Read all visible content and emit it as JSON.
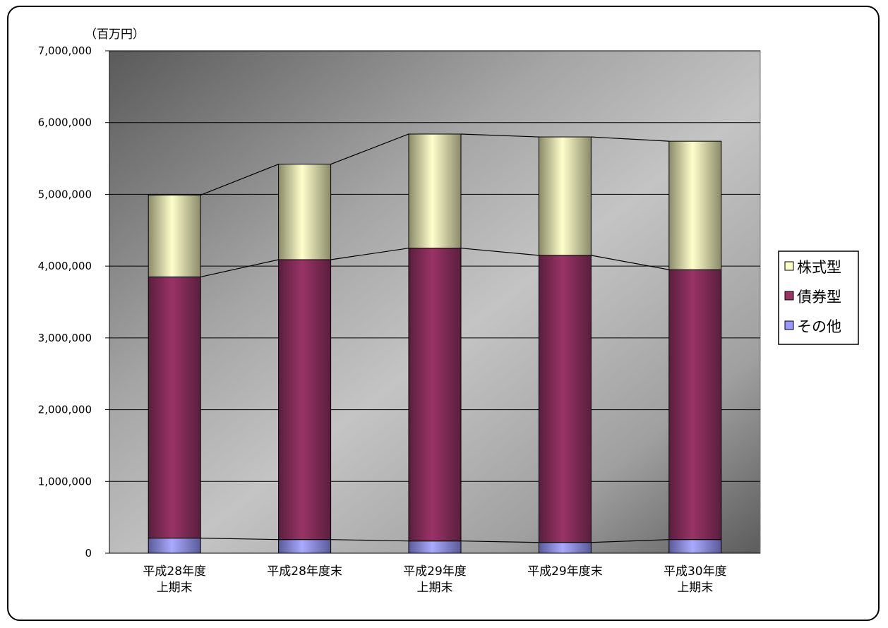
{
  "chart_data": {
    "type": "bar",
    "stacked": true,
    "unit_label": "（百万円）",
    "categories": [
      [
        "平成28年度",
        "上期末"
      ],
      [
        "平成28年度末"
      ],
      [
        "平成29年度",
        "上期末"
      ],
      [
        "平成29年度末"
      ],
      [
        "平成30年度",
        "上期末"
      ]
    ],
    "series": [
      {
        "name": "その他",
        "color": "#9999ff",
        "values": [
          210000,
          190000,
          170000,
          150000,
          190000
        ]
      },
      {
        "name": "債券型",
        "color": "#993366",
        "values": [
          3640000,
          3900000,
          4080000,
          4000000,
          3760000
        ]
      },
      {
        "name": "株式型",
        "color": "#ffffcc",
        "values": [
          1140000,
          1330000,
          1590000,
          1650000,
          1790000
        ]
      }
    ],
    "legend_order": [
      "株式型",
      "債券型",
      "その他"
    ],
    "ylim": [
      0,
      7000000
    ],
    "yticks": [
      "0",
      "1,000,000",
      "2,000,000",
      "3,000,000",
      "4,000,000",
      "5,000,000",
      "6,000,000",
      "7,000,000"
    ],
    "grid": true,
    "series_lines": true,
    "legend_position": "right"
  }
}
